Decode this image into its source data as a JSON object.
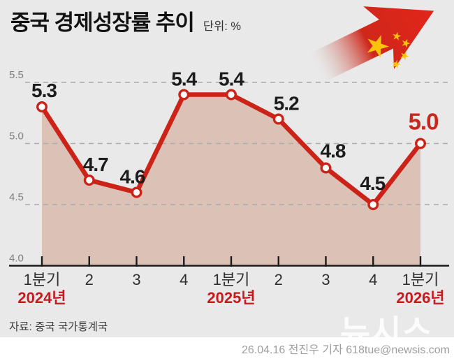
{
  "header": {
    "title": "중국 경제성장률 추이",
    "unit_label": "단위: %"
  },
  "chart_data": {
    "type": "line",
    "title": "중국 경제성장률 추이",
    "unit": "%",
    "categories": [
      "1분기",
      "2",
      "3",
      "4",
      "1분기",
      "2",
      "3",
      "4",
      "1분기"
    ],
    "values": [
      5.3,
      4.7,
      4.6,
      5.4,
      5.4,
      5.2,
      4.8,
      4.5,
      5.0
    ],
    "year_labels": [
      {
        "label": "2024년",
        "category_index": 0
      },
      {
        "label": "2025년",
        "category_index": 4
      },
      {
        "label": "2026년",
        "category_index": 8
      }
    ],
    "yticks": [
      5.5,
      5.0,
      4.5,
      4.0
    ],
    "ylim": [
      4.0,
      5.5
    ],
    "grid": "horizontal-dashed",
    "legend": "none",
    "highlight_index": 8,
    "colors": {
      "line": "#cb2318",
      "area_fill": "#dcc1b6",
      "marker_fill": "#ffffff",
      "value_label": "#1c1c1c",
      "highlight_value": "#c9281f",
      "year_label": "#c8191f",
      "axis": "#1a1a1a",
      "gridline": "#ababab",
      "tick_label": "#7f7f7f",
      "quarter_label": "#2f2f2f",
      "arrow_red": "#e1251b",
      "star_yellow": "#fcc30a"
    }
  },
  "footer": {
    "source": "자료: 중국 국가통계국",
    "credit": "26.04.16 전진우 기자 618tue@newsis.com"
  },
  "watermark": {
    "text": "뉴시스"
  }
}
